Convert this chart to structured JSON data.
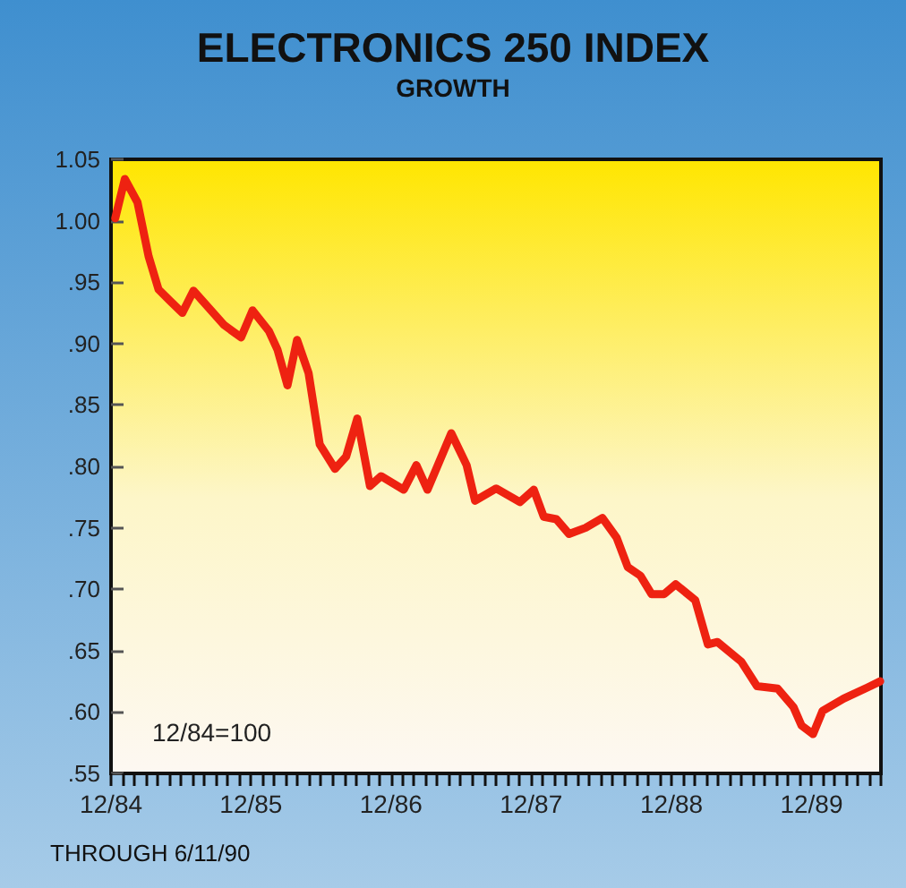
{
  "chart_data": {
    "type": "line",
    "title": "ELECTRONICS 250 INDEX",
    "subtitle": "GROWTH",
    "annotations": [
      "12/84=100",
      "THROUGH 6/11/90"
    ],
    "series": [
      {
        "color": "#ee2211",
        "x": [
          "1985-01-11",
          "1985-02-05",
          "1985-03-10",
          "1985-04-08",
          "1985-05-04",
          "1985-06-02",
          "1985-07-05",
          "1985-08-03",
          "1985-09-12",
          "1985-10-22",
          "1985-12-05",
          "1986-01-04",
          "1986-02-16",
          "1986-03-10",
          "1986-04-05",
          "1986-04-30",
          "1986-05-30",
          "1986-06-28",
          "1986-08-07",
          "1986-09-05",
          "1986-10-04",
          "1986-11-06",
          "1986-12-05",
          "1987-02-02",
          "1987-03-07",
          "1987-04-05",
          "1987-06-06",
          "1987-07-16",
          "1987-08-07",
          "1987-10-01",
          "1987-12-02",
          "1988-01-07",
          "1988-02-02",
          "1988-03-06",
          "1988-04-08",
          "1988-05-21",
          "1988-07-04",
          "1988-08-10",
          "1988-09-08",
          "1988-10-11",
          "1988-11-09",
          "1988-12-12",
          "1989-01-11",
          "1989-03-03",
          "1989-04-05",
          "1989-04-30",
          "1989-07-01",
          "1989-08-11",
          "1989-10-04",
          "1989-11-14",
          "1989-12-05",
          "1990-01-04",
          "1990-01-29",
          "1990-03-25",
          "1990-05-26",
          "1990-06-28"
        ],
        "values": [
          1.002,
          1.034,
          1.015,
          0.971,
          0.944,
          0.935,
          0.925,
          0.943,
          0.929,
          0.915,
          0.905,
          0.927,
          0.91,
          0.895,
          0.866,
          0.903,
          0.876,
          0.818,
          0.798,
          0.808,
          0.839,
          0.784,
          0.792,
          0.781,
          0.801,
          0.781,
          0.827,
          0.801,
          0.772,
          0.782,
          0.771,
          0.781,
          0.759,
          0.757,
          0.745,
          0.75,
          0.758,
          0.742,
          0.718,
          0.711,
          0.696,
          0.696,
          0.704,
          0.691,
          0.655,
          0.657,
          0.641,
          0.621,
          0.619,
          0.604,
          0.589,
          0.582,
          0.601,
          0.611,
          0.62,
          0.625
        ]
      }
    ],
    "xlim": [
      "1984-12-31",
      "1990-06-30"
    ],
    "xticks": [
      {
        "value": "1984-12-31",
        "label": "12/84"
      },
      {
        "value": "1985-01-31",
        "label": null
      },
      {
        "value": "1985-02-28",
        "label": null
      },
      {
        "value": "1985-03-31",
        "label": null
      },
      {
        "value": "1985-04-30",
        "label": null
      },
      {
        "value": "1985-05-31",
        "label": null
      },
      {
        "value": "1985-06-30",
        "label": null
      },
      {
        "value": "1985-07-31",
        "label": null
      },
      {
        "value": "1985-08-31",
        "label": null
      },
      {
        "value": "1985-09-30",
        "label": null
      },
      {
        "value": "1985-10-31",
        "label": null
      },
      {
        "value": "1985-11-30",
        "label": null
      },
      {
        "value": "1985-12-31",
        "label": "12/85"
      },
      {
        "value": "1986-01-31",
        "label": null
      },
      {
        "value": "1986-02-28",
        "label": null
      },
      {
        "value": "1986-03-31",
        "label": null
      },
      {
        "value": "1986-04-30",
        "label": null
      },
      {
        "value": "1986-05-31",
        "label": null
      },
      {
        "value": "1986-06-30",
        "label": null
      },
      {
        "value": "1986-07-31",
        "label": null
      },
      {
        "value": "1986-08-31",
        "label": null
      },
      {
        "value": "1986-09-30",
        "label": null
      },
      {
        "value": "1986-10-31",
        "label": null
      },
      {
        "value": "1986-11-30",
        "label": null
      },
      {
        "value": "1986-12-31",
        "label": "12/86"
      },
      {
        "value": "1987-01-31",
        "label": null
      },
      {
        "value": "1987-02-28",
        "label": null
      },
      {
        "value": "1987-03-31",
        "label": null
      },
      {
        "value": "1987-04-30",
        "label": null
      },
      {
        "value": "1987-05-31",
        "label": null
      },
      {
        "value": "1987-06-30",
        "label": null
      },
      {
        "value": "1987-07-31",
        "label": null
      },
      {
        "value": "1987-08-31",
        "label": null
      },
      {
        "value": "1987-09-30",
        "label": null
      },
      {
        "value": "1987-10-31",
        "label": null
      },
      {
        "value": "1987-11-30",
        "label": null
      },
      {
        "value": "1987-12-31",
        "label": "12/87"
      },
      {
        "value": "1988-01-31",
        "label": null
      },
      {
        "value": "1988-02-29",
        "label": null
      },
      {
        "value": "1988-03-31",
        "label": null
      },
      {
        "value": "1988-04-30",
        "label": null
      },
      {
        "value": "1988-05-31",
        "label": null
      },
      {
        "value": "1988-06-30",
        "label": null
      },
      {
        "value": "1988-07-31",
        "label": null
      },
      {
        "value": "1988-08-31",
        "label": null
      },
      {
        "value": "1988-09-30",
        "label": null
      },
      {
        "value": "1988-10-31",
        "label": null
      },
      {
        "value": "1988-11-30",
        "label": null
      },
      {
        "value": "1988-12-31",
        "label": "12/88"
      },
      {
        "value": "1989-01-31",
        "label": null
      },
      {
        "value": "1989-02-28",
        "label": null
      },
      {
        "value": "1989-03-31",
        "label": null
      },
      {
        "value": "1989-04-30",
        "label": null
      },
      {
        "value": "1989-05-31",
        "label": null
      },
      {
        "value": "1989-06-30",
        "label": null
      },
      {
        "value": "1989-07-31",
        "label": null
      },
      {
        "value": "1989-08-31",
        "label": null
      },
      {
        "value": "1989-09-30",
        "label": null
      },
      {
        "value": "1989-10-31",
        "label": null
      },
      {
        "value": "1989-11-30",
        "label": null
      },
      {
        "value": "1989-12-31",
        "label": "12/89"
      },
      {
        "value": "1990-01-31",
        "label": null
      },
      {
        "value": "1990-02-28",
        "label": null
      },
      {
        "value": "1990-03-31",
        "label": null
      },
      {
        "value": "1990-04-30",
        "label": null
      },
      {
        "value": "1990-05-31",
        "label": null
      },
      {
        "value": "1990-06-30",
        "label": null
      }
    ],
    "ylim": [
      0.55,
      1.05
    ],
    "yticks": [
      {
        "value": 0.55,
        "label": ".55"
      },
      {
        "value": 0.6,
        "label": ".60"
      },
      {
        "value": 0.65,
        "label": ".65"
      },
      {
        "value": 0.7,
        "label": ".70"
      },
      {
        "value": 0.75,
        "label": ".75"
      },
      {
        "value": 0.8,
        "label": ".80"
      },
      {
        "value": 0.85,
        "label": ".85"
      },
      {
        "value": 0.9,
        "label": ".90"
      },
      {
        "value": 0.95,
        "label": ".95"
      },
      {
        "value": 1,
        "label": "1.00"
      },
      {
        "value": 1.05,
        "label": "1.05"
      }
    ],
    "grid": false,
    "marker": "none",
    "line_style": "solid"
  }
}
